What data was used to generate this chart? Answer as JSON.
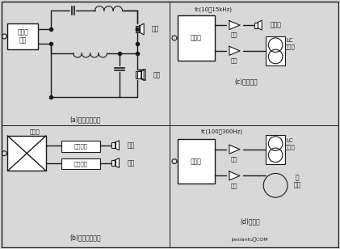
{
  "bg_color": "#d8d8d8",
  "line_color": "#1a1a1a",
  "box_color": "#ffffff",
  "text_color": "#1a1a1a",
  "title_a": "(a)后级功率分频",
  "title_b": "(b)前级电子分频",
  "title_c": "(c)加超高音",
  "title_d": "(d)超低音",
  "label_quanpin": "全频带\n功放",
  "label_gaoyin": "高音",
  "label_diyin": "低音",
  "label_fenpin": "分频器",
  "label_gaoyin_gongfang": "高音功放",
  "label_diyin_gongfang": "低音功放",
  "label_gongfang": "功放",
  "label_chaogaoyin": "超高音",
  "label_lc": "LC",
  "label_erfen": "二分频",
  "label_fc1": "fc(10～15kHz)",
  "label_fc2": "fc(100～300Hz)",
  "label_chaodiy": "超\n低音",
  "watermark": "jiexiantu．COM"
}
